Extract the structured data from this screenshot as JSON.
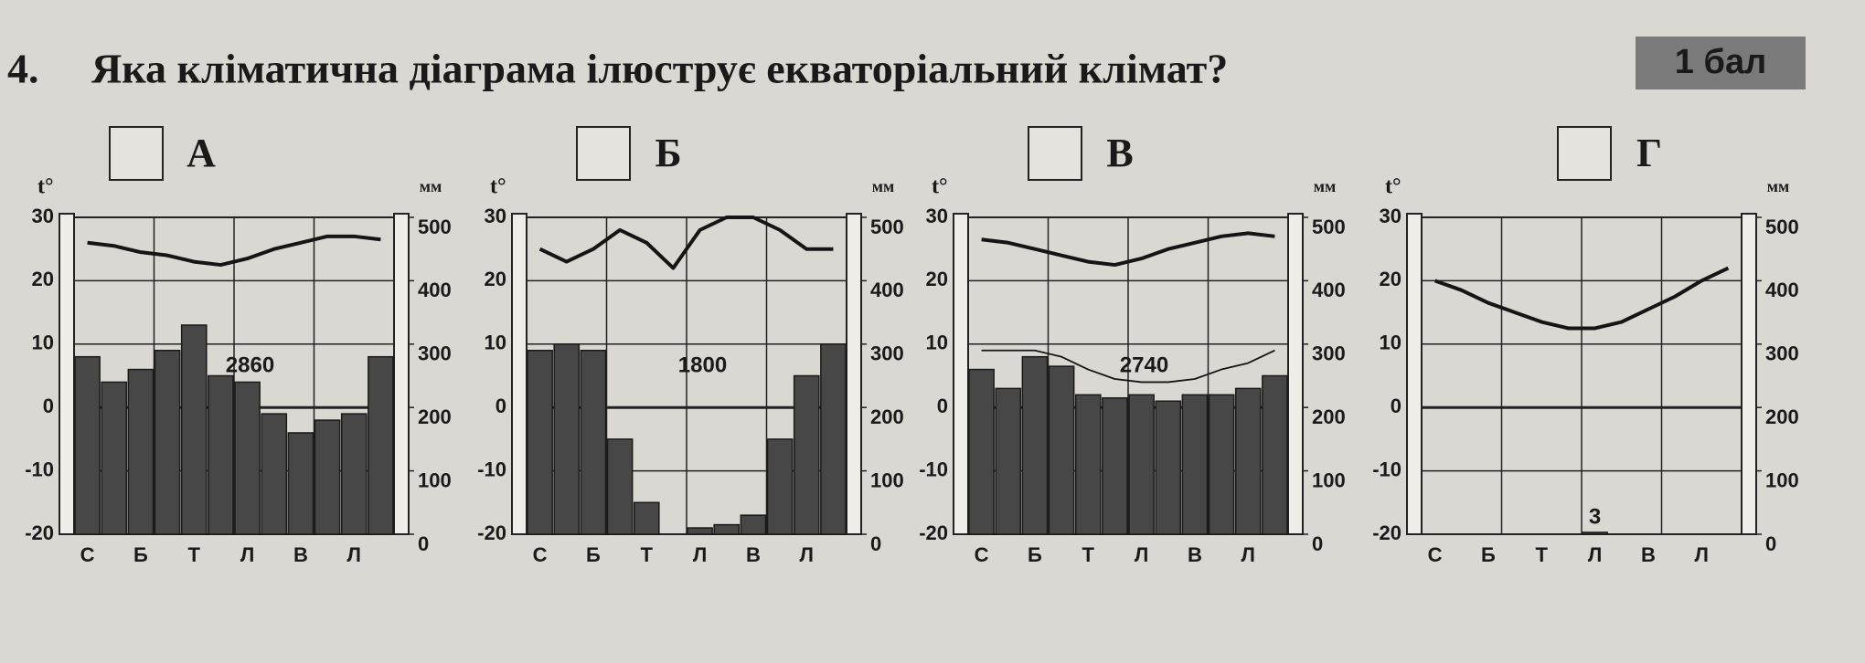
{
  "question": {
    "number": "4.",
    "text": "Яка кліматична діаграма ілюструє екваторіальний клімат?",
    "score": "1 бал"
  },
  "chart_data": [
    {
      "type": "climate",
      "title": "А",
      "y_label": "t°",
      "y2_label": "мм",
      "annotation": "2860",
      "categories": [
        "С",
        null,
        "Б",
        null,
        "Т",
        null,
        "Л",
        null,
        "В",
        null,
        "Л",
        null
      ],
      "ylim": [
        -20,
        30
      ],
      "yticks": [
        -20,
        -10,
        0,
        10,
        20,
        30
      ],
      "y2lim": [
        0,
        500
      ],
      "y2ticks": [
        0,
        100,
        200,
        300,
        400,
        500
      ],
      "series": [
        {
          "type": "bar",
          "axis": "y2",
          "color": "#474747",
          "values": [
            280,
            240,
            260,
            290,
            330,
            250,
            240,
            190,
            160,
            180,
            190,
            280
          ]
        },
        {
          "type": "line",
          "color": "#151515",
          "values": [
            26,
            25.5,
            24.5,
            24,
            23,
            22.5,
            23.5,
            25,
            26,
            27,
            27,
            26.5
          ]
        }
      ]
    },
    {
      "type": "climate",
      "title": "Б",
      "y_label": "t°",
      "y2_label": "мм",
      "annotation": "1800",
      "categories": [
        "С",
        null,
        "Б",
        null,
        "Т",
        null,
        "Л",
        null,
        "В",
        null,
        "Л",
        null
      ],
      "ylim": [
        -20,
        30
      ],
      "yticks": [
        -20,
        -10,
        0,
        10,
        20,
        30
      ],
      "y2lim": [
        0,
        500
      ],
      "y2ticks": [
        0,
        100,
        200,
        300,
        400,
        500
      ],
      "series": [
        {
          "type": "bar",
          "axis": "y2",
          "color": "#474747",
          "values": [
            290,
            300,
            290,
            150,
            50,
            0,
            10,
            15,
            30,
            150,
            250,
            300
          ]
        },
        {
          "type": "line",
          "color": "#151515",
          "values": [
            25,
            23,
            25,
            28,
            26,
            22,
            28,
            30,
            30,
            28,
            25,
            25
          ]
        }
      ]
    },
    {
      "type": "climate",
      "title": "В",
      "y_label": "t°",
      "y2_label": "мм",
      "annotation": "2740",
      "categories": [
        "С",
        null,
        "Б",
        null,
        "Т",
        null,
        "Л",
        null,
        "В",
        null,
        "Л",
        null
      ],
      "ylim": [
        -20,
        30
      ],
      "yticks": [
        -20,
        -10,
        0,
        10,
        20,
        30
      ],
      "y2lim": [
        0,
        500
      ],
      "y2ticks": [
        0,
        100,
        200,
        300,
        400,
        500
      ],
      "series": [
        {
          "type": "bar",
          "axis": "y2",
          "color": "#474747",
          "values": [
            260,
            230,
            280,
            265,
            220,
            215,
            220,
            210,
            220,
            220,
            230,
            250
          ]
        },
        {
          "type": "line",
          "color": "#151515",
          "values": [
            26.5,
            26,
            25,
            24,
            23,
            22.5,
            23.5,
            25,
            26,
            27,
            27.5,
            27
          ]
        },
        {
          "type": "thin-line",
          "color": "#151515",
          "values": [
            9,
            9,
            9,
            8,
            6,
            4.5,
            4,
            4,
            4.5,
            6,
            7,
            9
          ]
        }
      ]
    },
    {
      "type": "climate",
      "title": "Г",
      "y_label": "t°",
      "y2_label": "мм",
      "annotation": "3",
      "categories": [
        "С",
        null,
        "Б",
        null,
        "Т",
        null,
        "Л",
        null,
        "В",
        null,
        "Л",
        null
      ],
      "ylim": [
        -20,
        30
      ],
      "yticks": [
        -20,
        -10,
        0,
        10,
        20,
        30
      ],
      "y2lim": [
        0,
        500
      ],
      "y2ticks": [
        0,
        100,
        200,
        300,
        400,
        500
      ],
      "series": [
        {
          "type": "bar",
          "axis": "y2",
          "color": "#474747",
          "values": [
            0,
            0,
            0,
            0,
            0,
            0,
            3,
            0,
            0,
            0,
            0,
            0
          ]
        },
        {
          "type": "line",
          "color": "#151515",
          "values": [
            20,
            18.5,
            16.5,
            15,
            13.5,
            12.5,
            12.5,
            13.5,
            15.5,
            17.5,
            20,
            22
          ]
        }
      ]
    }
  ]
}
